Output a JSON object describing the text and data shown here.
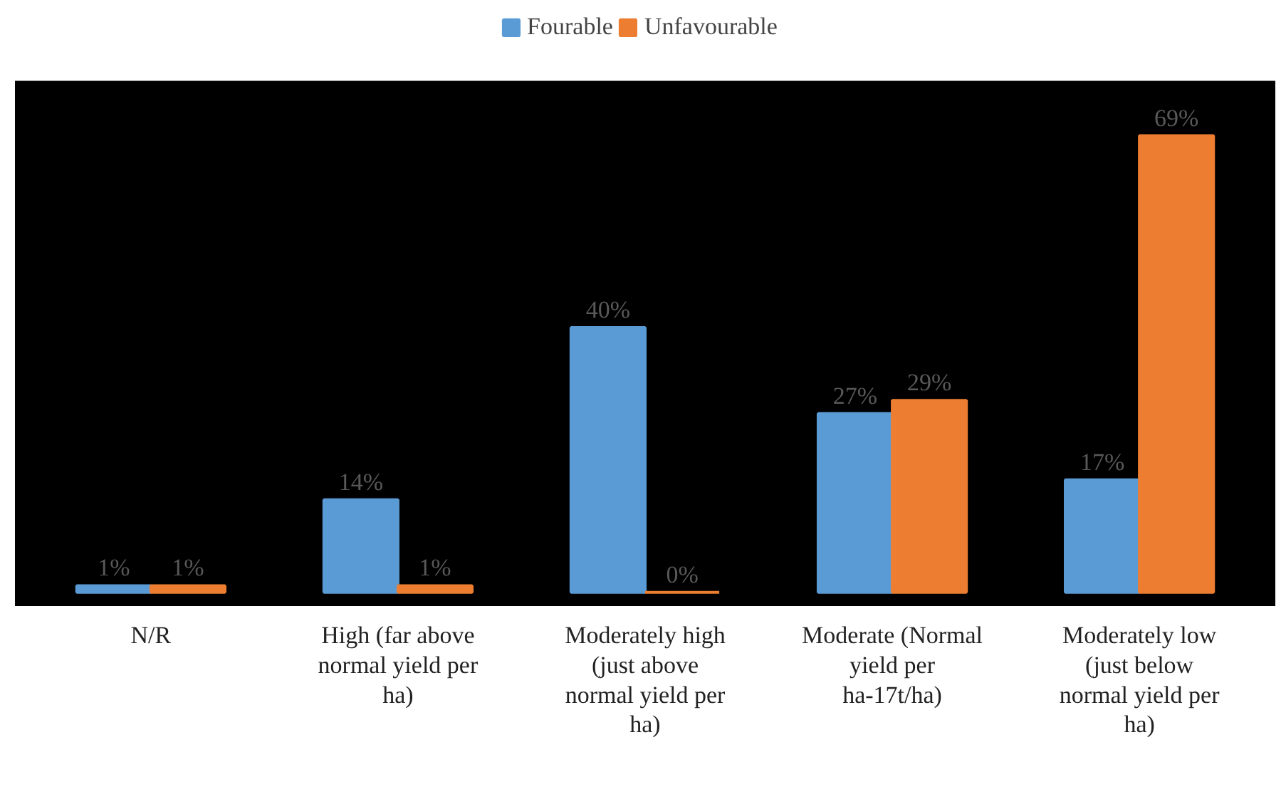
{
  "chart_data": {
    "type": "bar",
    "categories": [
      "N/R",
      "High (far above normal yield per ha)",
      "Moderately high (just above normal yield per ha)",
      "Moderate (Normal yield per ha-17t/ha)",
      "Moderately low (just below normal yield per ha)"
    ],
    "series": [
      {
        "name": "Fourable",
        "color": "#5b9bd5",
        "values": [
          1,
          14,
          40,
          27,
          17
        ],
        "value_labels": [
          "1%",
          "14%",
          "40%",
          "27%",
          "17%"
        ]
      },
      {
        "name": "Unfavourable",
        "color": "#ed7d31",
        "values": [
          1,
          1,
          0,
          29,
          69
        ],
        "value_labels": [
          "1%",
          "1%",
          "0%",
          "29%",
          "69%"
        ]
      }
    ],
    "legend": "top"
  }
}
